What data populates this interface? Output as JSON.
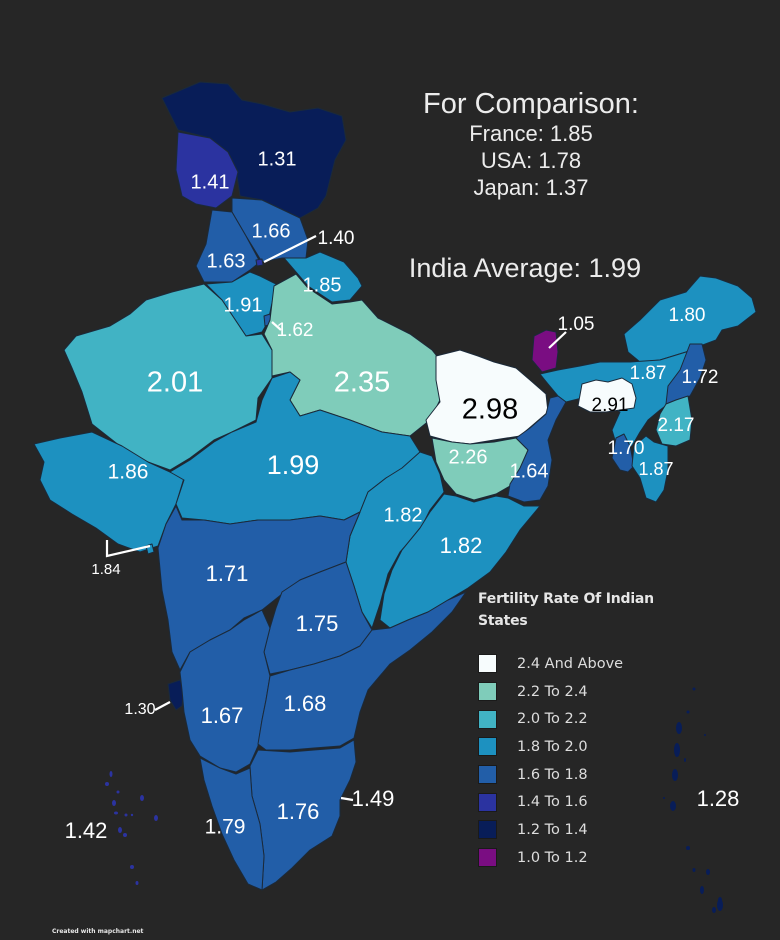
{
  "comparison": {
    "title": "For Comparison:",
    "items": [
      {
        "country": "France",
        "value": 1.85,
        "text": "France: 1.85"
      },
      {
        "country": "USA",
        "value": 1.78,
        "text": "USA: 1.78"
      },
      {
        "country": "Japan",
        "value": 1.37,
        "text": "Japan: 1.37"
      }
    ]
  },
  "india_average": {
    "label": "India Average: 1.99",
    "value": 1.99
  },
  "legend": {
    "title": "Fertility Rate Of Indian States",
    "entries": [
      {
        "label": "2.4 And Above",
        "color": "#f7fcfd"
      },
      {
        "label": "2.2 To 2.4",
        "color": "#7fccba"
      },
      {
        "label": "2.0 To 2.2",
        "color": "#41b3c4"
      },
      {
        "label": "1.8 To 2.0",
        "color": "#1d91c0"
      },
      {
        "label": "1.6 To 1.8",
        "color": "#225ea8"
      },
      {
        "label": "1.4 To 1.6",
        "color": "#2b33a0"
      },
      {
        "label": "1.2 To 1.4",
        "color": "#081d58"
      },
      {
        "label": "1.0 To 1.2",
        "color": "#7a0d82"
      }
    ]
  },
  "regions": [
    {
      "id": "jammu-kashmir-ladakh",
      "value": 1.31,
      "label": "1.31"
    },
    {
      "id": "himachal",
      "value": 1.41,
      "label": "1.41"
    },
    {
      "id": "uttarakhand-north",
      "value": 1.66,
      "label": "1.66"
    },
    {
      "id": "punjab",
      "value": 1.63,
      "label": "1.63"
    },
    {
      "id": "chandigarh",
      "value": 1.4,
      "label": "1.40"
    },
    {
      "id": "uttarakhand",
      "value": 1.85,
      "label": "1.85"
    },
    {
      "id": "haryana",
      "value": 1.91,
      "label": "1.91"
    },
    {
      "id": "delhi",
      "value": 1.62,
      "label": "1.62"
    },
    {
      "id": "rajasthan",
      "value": 2.01,
      "label": "2.01"
    },
    {
      "id": "uttar-pradesh",
      "value": 2.35,
      "label": "2.35"
    },
    {
      "id": "bihar",
      "value": 2.98,
      "label": "2.98"
    },
    {
      "id": "sikkim",
      "value": 1.05,
      "label": "1.05"
    },
    {
      "id": "arunachal",
      "value": 1.8,
      "label": "1.80"
    },
    {
      "id": "assam",
      "value": 1.87,
      "label": "1.87"
    },
    {
      "id": "nagaland",
      "value": 1.72,
      "label": "1.72"
    },
    {
      "id": "meghalaya",
      "value": 2.91,
      "label": "2.91"
    },
    {
      "id": "manipur",
      "value": 2.17,
      "label": "2.17"
    },
    {
      "id": "tripura",
      "value": 1.7,
      "label": "1.70"
    },
    {
      "id": "mizoram",
      "value": 1.87,
      "label": "1.87"
    },
    {
      "id": "gujarat",
      "value": 1.86,
      "label": "1.86"
    },
    {
      "id": "madhya-pradesh",
      "value": 1.99,
      "label": "1.99"
    },
    {
      "id": "jharkhand",
      "value": 2.26,
      "label": "2.26"
    },
    {
      "id": "west-bengal",
      "value": 1.64,
      "label": "1.64"
    },
    {
      "id": "chhattisgarh",
      "value": 1.82,
      "label": "1.82"
    },
    {
      "id": "odisha",
      "value": 1.82,
      "label": "1.82"
    },
    {
      "id": "dadra-daman-diu",
      "value": 1.84,
      "label": "1.84"
    },
    {
      "id": "maharashtra",
      "value": 1.71,
      "label": "1.71"
    },
    {
      "id": "telangana",
      "value": 1.75,
      "label": "1.75"
    },
    {
      "id": "goa",
      "value": 1.3,
      "label": "1.30"
    },
    {
      "id": "karnataka",
      "value": 1.67,
      "label": "1.67"
    },
    {
      "id": "andhra-pradesh",
      "value": 1.68,
      "label": "1.68"
    },
    {
      "id": "puducherry",
      "value": 1.49,
      "label": "1.49"
    },
    {
      "id": "tamil-nadu",
      "value": 1.76,
      "label": "1.76"
    },
    {
      "id": "kerala",
      "value": 1.79,
      "label": "1.79"
    },
    {
      "id": "lakshadweep",
      "value": 1.42,
      "label": "1.42"
    },
    {
      "id": "andaman-nicobar",
      "value": 1.28,
      "label": "1.28"
    }
  ],
  "credit": "Created with mapchart.net"
}
